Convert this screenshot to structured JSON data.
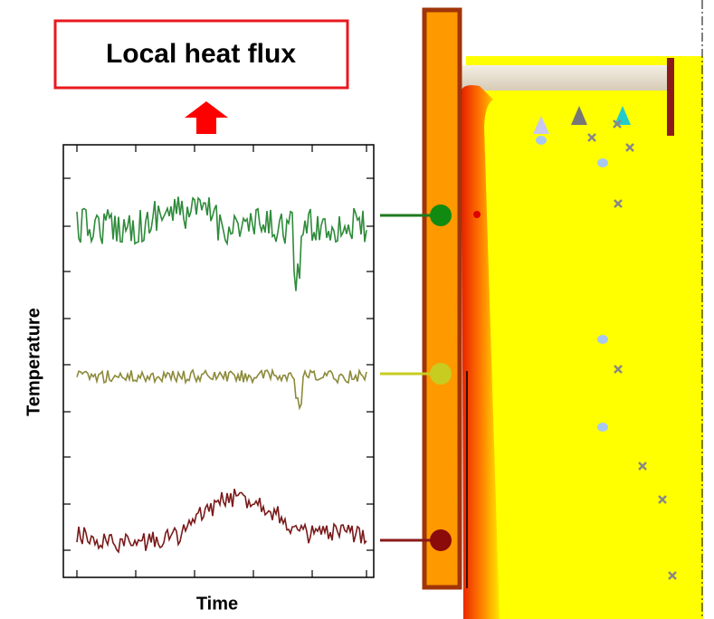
{
  "title": "Local heat flux",
  "y_label": "Temperature",
  "x_label": "Time"
}
